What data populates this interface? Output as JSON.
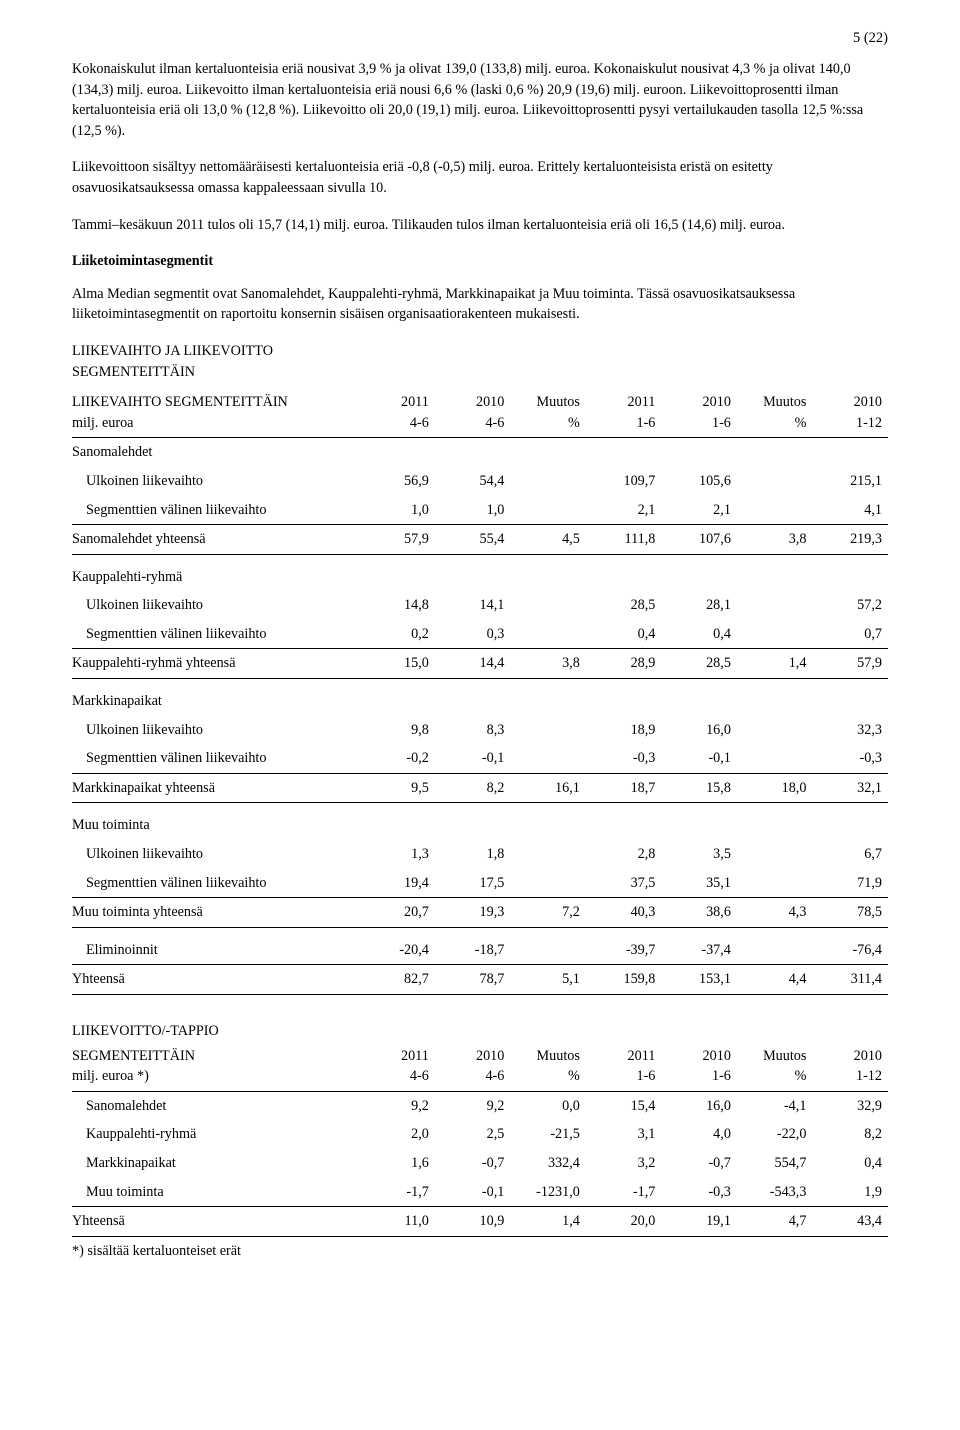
{
  "pageNumber": "5 (22)",
  "paragraphs": {
    "p1": "Kokonaiskulut ilman kertaluonteisia eriä nousivat 3,9 % ja olivat 139,0 (133,8) milj. euroa. Kokonaiskulut nousivat 4,3 % ja olivat 140,0 (134,3) milj. euroa. Liikevoitto ilman kertaluonteisia eriä nousi 6,6 % (laski 0,6 %) 20,9 (19,6) milj. euroon. Liikevoittoprosentti ilman kertaluonteisia eriä oli 13,0 % (12,8 %). Liikevoitto oli 20,0 (19,1) milj. euroa. Liikevoittoprosentti pysyi vertailukauden tasolla 12,5 %:ssa (12,5 %).",
    "p2": "Liikevoittoon sisältyy nettomääräisesti kertaluonteisia eriä -0,8 (-0,5) milj. euroa. Erittely kertaluonteisista eristä on esitetty osavuosikatsauksessa omassa kappaleessaan sivulla 10.",
    "p3": "Tammi–kesäkuun 2011 tulos oli 15,7 (14,1) milj. euroa. Tilikauden tulos ilman kertaluonteisia eriä oli 16,5 (14,6) milj. euroa.",
    "segmentsTitle": "Liiketoimintasegmentit",
    "p4": "Alma Median segmentit ovat Sanomalehdet, Kauppalehti-ryhmä, Markkinapaikat ja Muu toiminta. Tässä osavuosikatsauksessa liiketoimintasegmentit on raportoitu konsernin sisäisen organisaatiorakenteen mukaisesti."
  },
  "table1": {
    "heading1": "LIIKEVAIHTO JA LIIKEVOITTO",
    "heading2": "SEGMENTEITTÄIN",
    "rowHeaderTitle": "LIIKEVAIHTO SEGMENTEITTÄIN",
    "rowHeaderSubtitle": "milj. euroa",
    "colHeaders": [
      {
        "t1": "2011",
        "t2": "4-6"
      },
      {
        "t1": "2010",
        "t2": "4-6"
      },
      {
        "t1": "Muutos",
        "t2": "%"
      },
      {
        "t1": "2011",
        "t2": "1-6"
      },
      {
        "t1": "2010",
        "t2": "1-6"
      },
      {
        "t1": "Muutos",
        "t2": "%"
      },
      {
        "t1": "2010",
        "t2": "1-12"
      }
    ],
    "groups": [
      {
        "name": "Sanomalehdet",
        "rows": [
          {
            "label": "Ulkoinen liikevaihto",
            "cells": [
              "56,9",
              "54,4",
              "",
              "109,7",
              "105,6",
              "",
              "215,1"
            ],
            "border": false
          },
          {
            "label": "Segmenttien välinen liikevaihto",
            "cells": [
              "1,0",
              "1,0",
              "",
              "2,1",
              "2,1",
              "",
              "4,1"
            ],
            "border": true
          }
        ],
        "total": {
          "label": "Sanomalehdet yhteensä",
          "cells": [
            "57,9",
            "55,4",
            "4,5",
            "111,8",
            "107,6",
            "3,8",
            "219,3"
          ],
          "border": true
        }
      },
      {
        "name": "Kauppalehti-ryhmä",
        "rows": [
          {
            "label": "Ulkoinen liikevaihto",
            "cells": [
              "14,8",
              "14,1",
              "",
              "28,5",
              "28,1",
              "",
              "57,2"
            ],
            "border": false
          },
          {
            "label": "Segmenttien välinen liikevaihto",
            "cells": [
              "0,2",
              "0,3",
              "",
              "0,4",
              "0,4",
              "",
              "0,7"
            ],
            "border": true
          }
        ],
        "total": {
          "label": "Kauppalehti-ryhmä yhteensä",
          "cells": [
            "15,0",
            "14,4",
            "3,8",
            "28,9",
            "28,5",
            "1,4",
            "57,9"
          ],
          "border": true
        }
      },
      {
        "name": "Markkinapaikat",
        "rows": [
          {
            "label": "Ulkoinen liikevaihto",
            "cells": [
              "9,8",
              "8,3",
              "",
              "18,9",
              "16,0",
              "",
              "32,3"
            ],
            "border": false
          },
          {
            "label": "Segmenttien välinen liikevaihto",
            "cells": [
              "-0,2",
              "-0,1",
              "",
              "-0,3",
              "-0,1",
              "",
              "-0,3"
            ],
            "border": true
          }
        ],
        "total": {
          "label": "Markkinapaikat yhteensä",
          "cells": [
            "9,5",
            "8,2",
            "16,1",
            "18,7",
            "15,8",
            "18,0",
            "32,1"
          ],
          "border": true
        }
      },
      {
        "name": "Muu toiminta",
        "rows": [
          {
            "label": "Ulkoinen liikevaihto",
            "cells": [
              "1,3",
              "1,8",
              "",
              "2,8",
              "3,5",
              "",
              "6,7"
            ],
            "border": false
          },
          {
            "label": "Segmenttien välinen liikevaihto",
            "cells": [
              "19,4",
              "17,5",
              "",
              "37,5",
              "35,1",
              "",
              "71,9"
            ],
            "border": true
          }
        ],
        "total": {
          "label": "Muu toiminta yhteensä",
          "cells": [
            "20,7",
            "19,3",
            "7,2",
            "40,3",
            "38,6",
            "4,3",
            "78,5"
          ],
          "border": true
        }
      }
    ],
    "elim": {
      "label": "Eliminoinnit",
      "cells": [
        "-20,4",
        "-18,7",
        "",
        "-39,7",
        "-37,4",
        "",
        "-76,4"
      ]
    },
    "grand": {
      "label": "Yhteensä",
      "cells": [
        "82,7",
        "78,7",
        "5,1",
        "159,8",
        "153,1",
        "4,4",
        "311,4"
      ]
    }
  },
  "table2": {
    "rowHeaderTitle1": "LIIKEVOITTO/-TAPPIO",
    "rowHeaderTitle2": "SEGMENTEITTÄIN",
    "rowHeaderSubtitle": "milj. euroa *)",
    "colHeaders": [
      {
        "t1": "2011",
        "t2": "4-6"
      },
      {
        "t1": "2010",
        "t2": "4-6"
      },
      {
        "t1": "Muutos",
        "t2": "%"
      },
      {
        "t1": "2011",
        "t2": "1-6"
      },
      {
        "t1": "2010",
        "t2": "1-6"
      },
      {
        "t1": "Muutos",
        "t2": "%"
      },
      {
        "t1": "2010",
        "t2": "1-12"
      }
    ],
    "rows": [
      {
        "label": "Sanomalehdet",
        "cells": [
          "9,2",
          "9,2",
          "0,0",
          "15,4",
          "16,0",
          "-4,1",
          "32,9"
        ]
      },
      {
        "label": "Kauppalehti-ryhmä",
        "cells": [
          "2,0",
          "2,5",
          "-21,5",
          "3,1",
          "4,0",
          "-22,0",
          "8,2"
        ]
      },
      {
        "label": "Markkinapaikat",
        "cells": [
          "1,6",
          "-0,7",
          "332,4",
          "3,2",
          "-0,7",
          "554,7",
          "0,4"
        ]
      },
      {
        "label": "Muu toiminta",
        "cells": [
          "-1,7",
          "-0,1",
          "-1231,0",
          "-1,7",
          "-0,3",
          "-543,3",
          "1,9"
        ]
      }
    ],
    "grand": {
      "label": "Yhteensä",
      "cells": [
        "11,0",
        "10,9",
        "1,4",
        "20,0",
        "19,1",
        "4,7",
        "43,4"
      ]
    },
    "footnote": "*) sisältää kertaluonteiset erät"
  }
}
